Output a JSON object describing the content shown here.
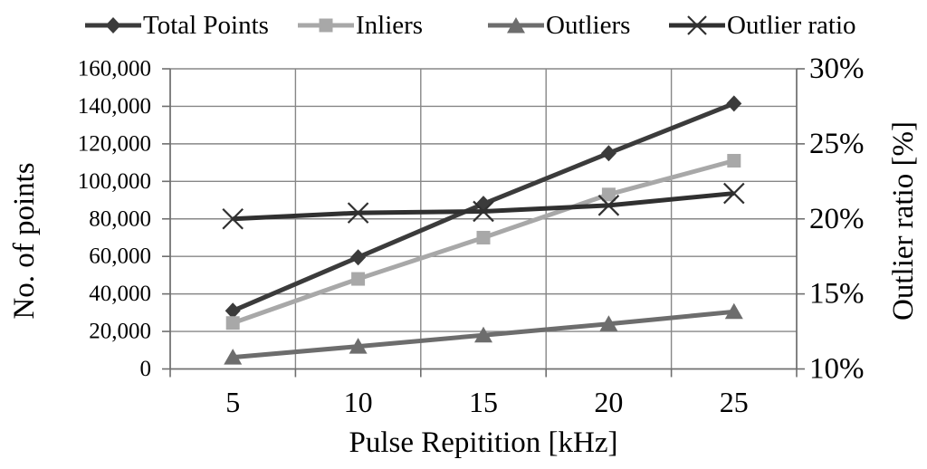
{
  "chart_data": {
    "type": "line",
    "title": "",
    "xlabel": "Pulse Repitition [kHz]",
    "ylabel_left": "No. of points",
    "ylabel_right": "Outlier ratio [%]",
    "categories": [
      5,
      10,
      15,
      20,
      25
    ],
    "x_tick_labels": [
      "5",
      "10",
      "15",
      "20",
      "25"
    ],
    "left_axis": {
      "min": 0,
      "max": 160000,
      "step": 20000,
      "tick_labels": [
        "0",
        "20,000",
        "40,000",
        "60,000",
        "80,000",
        "100,000",
        "120,000",
        "140,000",
        "160,000"
      ]
    },
    "right_axis": {
      "min": 10,
      "max": 30,
      "step": 5,
      "tick_labels": [
        "10%",
        "15%",
        "20%",
        "25%",
        "30%"
      ]
    },
    "grid": true,
    "legend_position": "top",
    "series": [
      {
        "name": "Total Points",
        "axis": "left",
        "marker": "diamond",
        "color": "#3b3b3b",
        "values": [
          31000,
          59500,
          88000,
          115000,
          141500
        ]
      },
      {
        "name": "Inliers",
        "axis": "left",
        "marker": "square",
        "color": "#a8a8a8",
        "values": [
          24500,
          48000,
          70000,
          93000,
          111000
        ]
      },
      {
        "name": "Outliers",
        "axis": "left",
        "marker": "triangle",
        "color": "#6d6d6d",
        "values": [
          6200,
          12000,
          18000,
          24000,
          30500
        ]
      },
      {
        "name": "Outlier ratio",
        "axis": "right",
        "marker": "x",
        "color": "#303030",
        "values": [
          20.0,
          20.4,
          20.5,
          20.9,
          21.7
        ]
      }
    ]
  },
  "colors": {
    "background": "#ffffff",
    "gridline": "#878787",
    "axis": "#6e6e6e",
    "text": "#000000"
  }
}
